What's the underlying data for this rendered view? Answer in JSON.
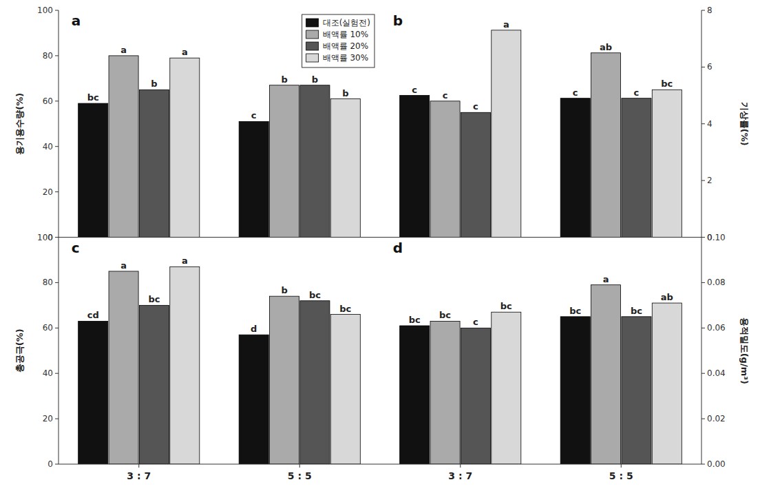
{
  "chart_data": [
    {
      "type": "bar",
      "title": "a",
      "ylabel": "용기용수량(%)",
      "categories": [
        null,
        null
      ],
      "ylim": [
        0,
        100
      ],
      "yticks": [
        0,
        20,
        40,
        60,
        80,
        100
      ],
      "legend": "upper right",
      "series": [
        {
          "name": "대조(실험전)",
          "color": "#111111",
          "values": [
            59,
            51
          ],
          "annotations": [
            "bc",
            "c"
          ]
        },
        {
          "name": "배액률 10%",
          "color": "#aaaaaa",
          "values": [
            80,
            67
          ],
          "annotations": [
            "a",
            "b"
          ]
        },
        {
          "name": "배액률 20%",
          "color": "#555555",
          "values": [
            65,
            67
          ],
          "annotations": [
            "b",
            "b"
          ]
        },
        {
          "name": "배액률 30%",
          "color": "#d8d8d8",
          "values": [
            79,
            61
          ],
          "annotations": [
            "a",
            "b"
          ]
        }
      ]
    },
    {
      "type": "bar",
      "title": "b",
      "ylabel": "기상률(%)",
      "categories": [
        null,
        null
      ],
      "ylim": [
        0,
        8
      ],
      "yticks": [
        0,
        2,
        4,
        6,
        8
      ],
      "series": [
        {
          "color": "#111111",
          "values": [
            5.0,
            4.9
          ],
          "annotations": [
            "c",
            "c"
          ]
        },
        {
          "color": "#aaaaaa",
          "values": [
            4.8,
            6.5
          ],
          "annotations": [
            "c",
            "ab"
          ]
        },
        {
          "color": "#555555",
          "values": [
            4.4,
            4.9
          ],
          "annotations": [
            "c",
            "c"
          ]
        },
        {
          "color": "#d8d8d8",
          "values": [
            7.3,
            5.2
          ],
          "annotations": [
            "a",
            "bc"
          ]
        }
      ]
    },
    {
      "type": "bar",
      "title": "c",
      "ylabel": "총공극(%)",
      "categories": [
        "3 : 7",
        "5 : 5"
      ],
      "ylim": [
        0,
        100
      ],
      "yticks": [
        0,
        20,
        40,
        60,
        80,
        100
      ],
      "series": [
        {
          "color": "#111111",
          "values": [
            63,
            57
          ],
          "annotations": [
            "cd",
            "d"
          ]
        },
        {
          "color": "#aaaaaa",
          "values": [
            85,
            74
          ],
          "annotations": [
            "a",
            "b"
          ]
        },
        {
          "color": "#555555",
          "values": [
            70,
            72
          ],
          "annotations": [
            "bc",
            "bc"
          ]
        },
        {
          "color": "#d8d8d8",
          "values": [
            87,
            66
          ],
          "annotations": [
            "a",
            "bc"
          ]
        }
      ]
    },
    {
      "type": "bar",
      "title": "d",
      "ylabel": "용적밀도(g/m³)",
      "categories": [
        "3 : 7",
        "5 : 5"
      ],
      "ylim": [
        0,
        0.1
      ],
      "yticks": [
        {
          "value": 0.0,
          "label": "0.00"
        },
        {
          "value": 0.02,
          "label": "0.02"
        },
        {
          "value": 0.04,
          "label": "0.04"
        },
        {
          "value": 0.06,
          "label": "0.06"
        },
        {
          "value": 0.08,
          "label": "0.08"
        },
        {
          "value": 0.1,
          "label": "0.10"
        }
      ],
      "series": [
        {
          "color": "#111111",
          "values": [
            0.061,
            0.065
          ],
          "annotations": [
            "bc",
            "bc"
          ]
        },
        {
          "color": "#aaaaaa",
          "values": [
            0.063,
            0.079
          ],
          "annotations": [
            "bc",
            "a"
          ]
        },
        {
          "color": "#555555",
          "values": [
            0.06,
            0.065
          ],
          "annotations": [
            "c",
            "bc"
          ]
        },
        {
          "color": "#d8d8d8",
          "values": [
            0.067,
            0.071
          ],
          "annotations": [
            "bc",
            "ab"
          ]
        }
      ]
    }
  ]
}
